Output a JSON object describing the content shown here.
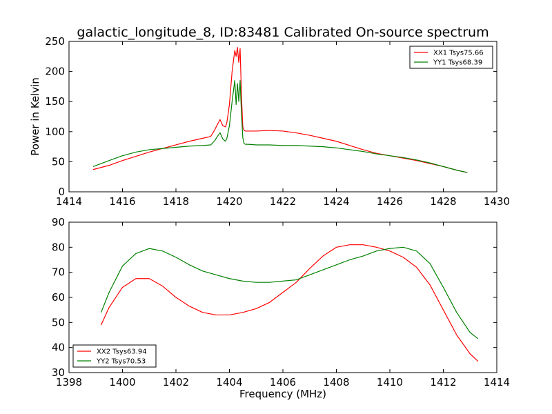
{
  "figure_title": "galactic_longitude_8, ID:83481 Calibrated On-source spectrum",
  "chart_data": [
    {
      "type": "line",
      "title": "galactic_longitude_8, ID:83481 Calibrated On-source spectrum",
      "xlabel": "",
      "ylabel": "Power in Kelvin",
      "xlim": [
        1414,
        1430
      ],
      "ylim": [
        0,
        250
      ],
      "xticks": [
        1414,
        1416,
        1418,
        1420,
        1422,
        1424,
        1426,
        1428,
        1430
      ],
      "yticks": [
        0,
        50,
        100,
        150,
        200,
        250
      ],
      "legend_position": "top-right",
      "grid": false,
      "series": [
        {
          "name": "XX1 Tsys75.66",
          "color": "#ff0000",
          "x": [
            1414.9,
            1415.5,
            1416.0,
            1416.5,
            1417.0,
            1417.5,
            1418.0,
            1418.5,
            1419.0,
            1419.3,
            1419.45,
            1419.55,
            1419.65,
            1419.75,
            1419.85,
            1419.9,
            1420.0,
            1420.1,
            1420.2,
            1420.25,
            1420.3,
            1420.35,
            1420.4,
            1420.45,
            1420.5,
            1420.55,
            1420.6,
            1420.7,
            1421.0,
            1421.5,
            1422.0,
            1422.5,
            1423.0,
            1423.5,
            1424.0,
            1424.5,
            1425.0,
            1425.5,
            1426.0,
            1426.5,
            1427.0,
            1427.5,
            1428.0,
            1428.5,
            1428.9
          ],
          "y": [
            37,
            44,
            52,
            59,
            66,
            72,
            78,
            84,
            89,
            92,
            103,
            112,
            120,
            110,
            108,
            114,
            145,
            200,
            235,
            225,
            240,
            215,
            238,
            160,
            108,
            102,
            101,
            101,
            101,
            102,
            101,
            98,
            94,
            89,
            84,
            77,
            70,
            64,
            60,
            56,
            52,
            47,
            42,
            36,
            32
          ]
        },
        {
          "name": "YY1 Tsys68.39",
          "color": "#008000",
          "x": [
            1414.9,
            1415.5,
            1416.0,
            1416.5,
            1417.0,
            1417.5,
            1418.0,
            1418.5,
            1419.0,
            1419.3,
            1419.45,
            1419.55,
            1419.65,
            1419.75,
            1419.85,
            1419.9,
            1420.0,
            1420.1,
            1420.2,
            1420.25,
            1420.3,
            1420.35,
            1420.4,
            1420.45,
            1420.5,
            1420.55,
            1420.6,
            1420.7,
            1421.0,
            1421.5,
            1422.0,
            1422.5,
            1423.0,
            1423.5,
            1424.0,
            1424.5,
            1425.0,
            1425.5,
            1426.0,
            1426.5,
            1427.0,
            1427.5,
            1428.0,
            1428.5,
            1428.9
          ],
          "y": [
            42,
            52,
            60,
            66,
            70,
            72,
            74,
            76,
            77,
            78,
            85,
            92,
            98,
            88,
            84,
            88,
            110,
            150,
            185,
            145,
            180,
            150,
            185,
            130,
            90,
            80,
            79,
            79,
            78,
            78,
            77,
            77,
            76,
            75,
            73,
            70,
            67,
            63,
            60,
            57,
            53,
            48,
            42,
            36,
            32
          ]
        }
      ]
    },
    {
      "type": "line",
      "title": "",
      "xlabel": "Frequency (MHz)",
      "ylabel": "",
      "xlim": [
        1398,
        1414
      ],
      "ylim": [
        30,
        90
      ],
      "xticks": [
        1398,
        1400,
        1402,
        1404,
        1406,
        1408,
        1410,
        1412,
        1414
      ],
      "yticks": [
        30,
        40,
        50,
        60,
        70,
        80,
        90
      ],
      "legend_position": "bottom-left",
      "grid": false,
      "series": [
        {
          "name": "XX2 Tsys63.94",
          "color": "#ff0000",
          "x": [
            1399.2,
            1399.5,
            1400.0,
            1400.5,
            1401.0,
            1401.5,
            1402.0,
            1402.5,
            1403.0,
            1403.5,
            1404.0,
            1404.5,
            1405.0,
            1405.5,
            1406.0,
            1406.5,
            1407.0,
            1407.5,
            1408.0,
            1408.5,
            1409.0,
            1409.5,
            1410.0,
            1410.5,
            1411.0,
            1411.5,
            1412.0,
            1412.5,
            1413.0,
            1413.3
          ],
          "y": [
            49,
            56,
            64,
            67.5,
            67.5,
            64.5,
            60,
            56.5,
            54,
            53,
            53,
            54,
            55.5,
            58,
            62,
            66,
            71.5,
            76.5,
            80,
            81,
            81,
            80,
            78.5,
            76,
            72,
            65,
            55,
            45,
            37.5,
            34.5
          ]
        },
        {
          "name": "YY2 Tsys70.53",
          "color": "#008000",
          "x": [
            1399.2,
            1399.5,
            1400.0,
            1400.5,
            1401.0,
            1401.5,
            1402.0,
            1402.5,
            1403.0,
            1403.5,
            1404.0,
            1404.5,
            1405.0,
            1405.5,
            1406.0,
            1406.5,
            1407.0,
            1407.5,
            1408.0,
            1408.5,
            1409.0,
            1409.5,
            1410.0,
            1410.5,
            1411.0,
            1411.5,
            1412.0,
            1412.5,
            1413.0,
            1413.3
          ],
          "y": [
            54,
            62,
            72.5,
            77.5,
            79.5,
            78.5,
            76,
            73,
            70.5,
            69,
            67.5,
            66.5,
            66,
            66,
            66.5,
            67,
            69,
            71,
            73,
            75,
            76.5,
            78.5,
            79.5,
            80,
            78.5,
            73.5,
            64,
            54,
            46,
            43.5
          ]
        }
      ]
    }
  ]
}
